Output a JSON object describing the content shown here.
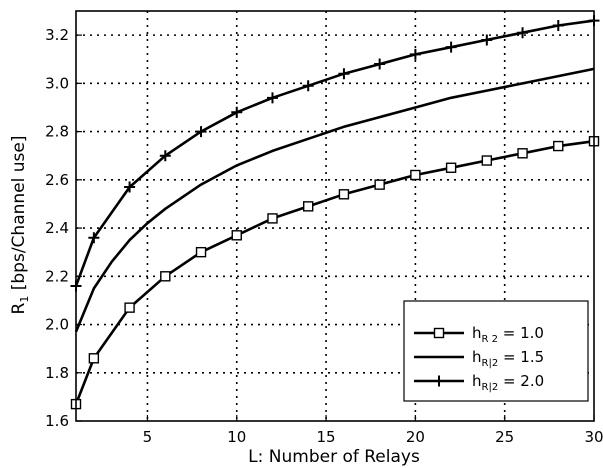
{
  "chart_data": {
    "type": "line",
    "title": "",
    "xlabel": "L: Number of Relays",
    "ylabel": "R",
    "ylabel_sub": "1",
    "ylabel_rest": " [bps/Channel use]",
    "xlim": [
      1,
      30
    ],
    "ylim": [
      1.6,
      3.3
    ],
    "x_ticks": [
      5,
      10,
      15,
      20,
      25,
      30
    ],
    "y_ticks": [
      1.6,
      1.8,
      2.0,
      2.2,
      2.4,
      2.6,
      2.8,
      3.0,
      3.2
    ],
    "grid": true,
    "legend_position": "bottom-right",
    "series": [
      {
        "legend_main": "h",
        "legend_sub": "R 2",
        "legend_value": " = 1.0",
        "marker": "square",
        "x": [
          1,
          2,
          4,
          6,
          8,
          10,
          12,
          14,
          16,
          18,
          20,
          22,
          24,
          26,
          28,
          30
        ],
        "y": [
          1.67,
          1.86,
          2.07,
          2.2,
          2.3,
          2.37,
          2.44,
          2.49,
          2.54,
          2.58,
          2.62,
          2.65,
          2.68,
          2.71,
          2.74,
          2.76
        ]
      },
      {
        "legend_main": "h",
        "legend_sub": "R|2",
        "legend_value": " = 1.5",
        "marker": "none",
        "x": [
          1,
          2,
          3,
          4,
          5,
          6,
          8,
          10,
          12,
          14,
          16,
          18,
          20,
          22,
          24,
          26,
          28,
          30
        ],
        "y": [
          1.97,
          2.15,
          2.26,
          2.35,
          2.42,
          2.48,
          2.58,
          2.66,
          2.72,
          2.77,
          2.82,
          2.86,
          2.9,
          2.94,
          2.97,
          3.0,
          3.03,
          3.06
        ]
      },
      {
        "legend_main": "h",
        "legend_sub": "R|2",
        "legend_value": " = 2.0",
        "marker": "plus",
        "x": [
          1,
          2,
          4,
          6,
          8,
          10,
          12,
          14,
          16,
          18,
          20,
          22,
          24,
          26,
          28,
          30
        ],
        "y": [
          2.16,
          2.36,
          2.57,
          2.7,
          2.8,
          2.88,
          2.94,
          2.99,
          3.04,
          3.08,
          3.12,
          3.15,
          3.18,
          3.21,
          3.24,
          3.26
        ]
      }
    ]
  }
}
